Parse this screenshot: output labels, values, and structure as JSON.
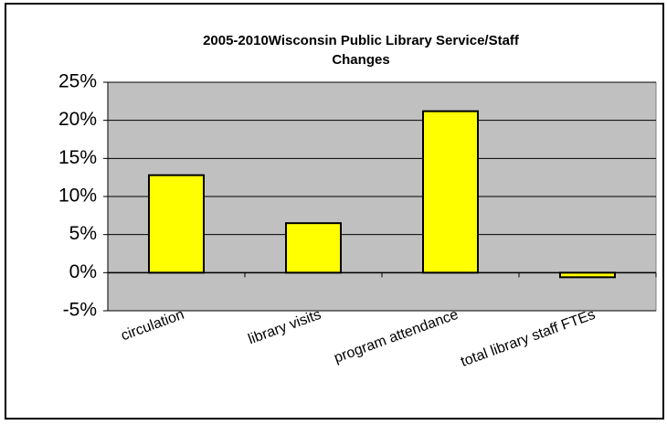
{
  "chart_data": {
    "type": "bar",
    "title": [
      "2005-2010Wisconsin  Public Library Service/Staff",
      "Changes"
    ],
    "categories": [
      "circulation",
      "library visits",
      "program attendance",
      "total library staff FTEs"
    ],
    "values": [
      12.8,
      6.5,
      21.2,
      -0.6
    ],
    "color": "#ffff00",
    "ylim": [
      -5,
      25
    ],
    "yticks": [
      {
        "value": -5,
        "label": "-5%"
      },
      {
        "value": 0,
        "label": "0%"
      },
      {
        "value": 5,
        "label": "5%"
      },
      {
        "value": 10,
        "label": "10%"
      },
      {
        "value": 15,
        "label": "15%"
      },
      {
        "value": 20,
        "label": "20%"
      },
      {
        "value": 25,
        "label": "25%"
      }
    ],
    "grid": true
  }
}
